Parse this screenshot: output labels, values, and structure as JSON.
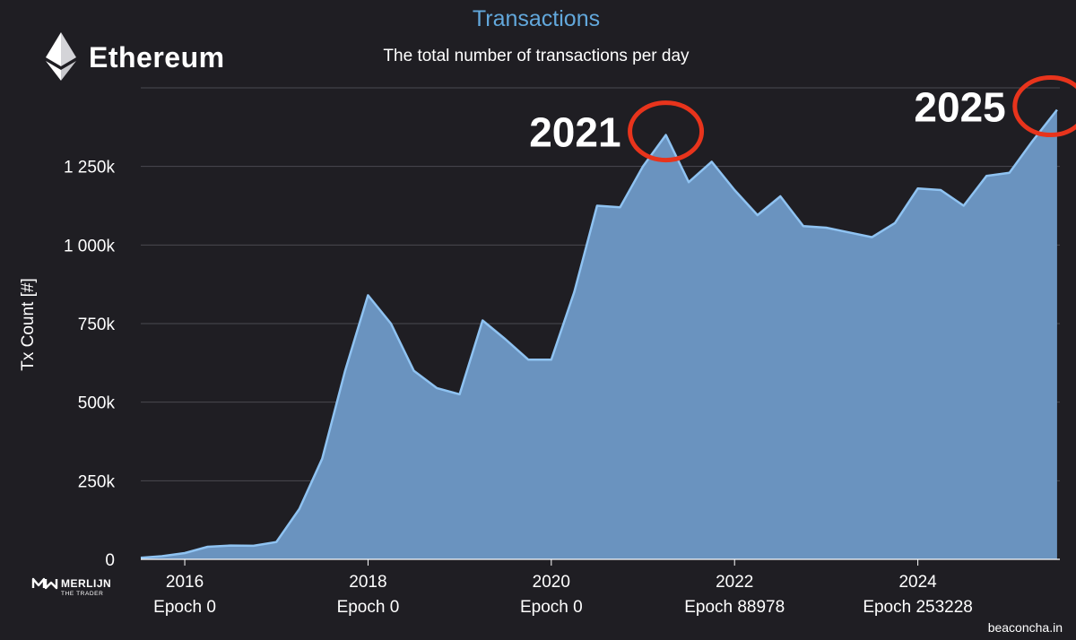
{
  "header": {
    "title": "Transactions",
    "subtitle": "The total number of transactions per day",
    "brand": "Ethereum"
  },
  "watermark": {
    "name": "MERLIJN",
    "tagline": "THE TRADER"
  },
  "source_credit": "beaconcha.in",
  "colors": {
    "background": "#1f1e23",
    "area_fill": "#6a93bf",
    "line": "#8fc3f2",
    "title": "#62a8dc",
    "highlight_circle": "#e8341c",
    "grid": "#4a4950"
  },
  "chart_data": {
    "type": "area",
    "title": "Transactions",
    "subtitle": "The total number of transactions per day",
    "ylabel": "Tx Count [#]",
    "xlabel": "",
    "grid": true,
    "legend": "none",
    "ylim": [
      0,
      1500000
    ],
    "xlim": [
      2015.52,
      2025.55
    ],
    "y_ticks": [
      {
        "value": 0,
        "label": "0"
      },
      {
        "value": 250000,
        "label": "250k"
      },
      {
        "value": 500000,
        "label": "500k"
      },
      {
        "value": 750000,
        "label": "750k"
      },
      {
        "value": 1000000,
        "label": "1 000k"
      },
      {
        "value": 1250000,
        "label": "1 250k"
      }
    ],
    "x_ticks": [
      {
        "value": 2016,
        "year": "2016",
        "epoch": "Epoch 0"
      },
      {
        "value": 2018,
        "year": "2018",
        "epoch": "Epoch 0"
      },
      {
        "value": 2020,
        "year": "2020",
        "epoch": "Epoch 0"
      },
      {
        "value": 2022,
        "year": "2022",
        "epoch": "Epoch 88978"
      },
      {
        "value": 2024,
        "year": "2024",
        "epoch": "Epoch 253228"
      }
    ],
    "series": [
      {
        "values": [
          [
            2015.52,
            5000
          ],
          [
            2015.75,
            10000
          ],
          [
            2016.0,
            20000
          ],
          [
            2016.25,
            40000
          ],
          [
            2016.5,
            44000
          ],
          [
            2016.75,
            43000
          ],
          [
            2017.0,
            55000
          ],
          [
            2017.25,
            160000
          ],
          [
            2017.5,
            320000
          ],
          [
            2017.75,
            600000
          ],
          [
            2018.0,
            840000
          ],
          [
            2018.25,
            750000
          ],
          [
            2018.5,
            600000
          ],
          [
            2018.75,
            545000
          ],
          [
            2019.0,
            525000
          ],
          [
            2019.25,
            760000
          ],
          [
            2019.5,
            700000
          ],
          [
            2019.75,
            635000
          ],
          [
            2020.0,
            635000
          ],
          [
            2020.25,
            850000
          ],
          [
            2020.5,
            1125000
          ],
          [
            2020.75,
            1120000
          ],
          [
            2021.0,
            1250000
          ],
          [
            2021.25,
            1350000
          ],
          [
            2021.5,
            1200000
          ],
          [
            2021.75,
            1265000
          ],
          [
            2022.0,
            1175000
          ],
          [
            2022.25,
            1095000
          ],
          [
            2022.5,
            1155000
          ],
          [
            2022.75,
            1060000
          ],
          [
            2023.0,
            1055000
          ],
          [
            2023.25,
            1040000
          ],
          [
            2023.5,
            1025000
          ],
          [
            2023.75,
            1070000
          ],
          [
            2024.0,
            1180000
          ],
          [
            2024.25,
            1175000
          ],
          [
            2024.5,
            1125000
          ],
          [
            2024.75,
            1220000
          ],
          [
            2025.0,
            1230000
          ],
          [
            2025.25,
            1330000
          ],
          [
            2025.52,
            1430000
          ]
        ]
      }
    ],
    "annotations": [
      {
        "label": "2021",
        "x": 2021.25,
        "y": 1350000,
        "shape": "circle"
      },
      {
        "label": "2025",
        "x": 2025.45,
        "y": 1430000,
        "shape": "circle"
      }
    ]
  }
}
